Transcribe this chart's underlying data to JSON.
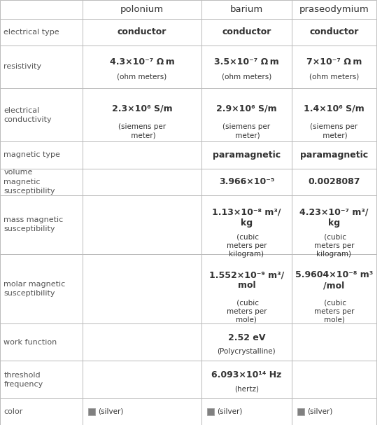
{
  "columns": [
    "",
    "polonium",
    "barium",
    "praseodymium"
  ],
  "rows": [
    {
      "label": "electrical type",
      "polonium": [
        [
          "conductor",
          "bold",
          9
        ]
      ],
      "barium": [
        [
          "conductor",
          "bold",
          9
        ]
      ],
      "praseodymium": [
        [
          "conductor",
          "bold",
          9
        ]
      ]
    },
    {
      "label": "resistivity",
      "polonium": [
        [
          "4.3×10⁻⁷ Ω m",
          "bold",
          9
        ],
        [
          "\n(ohm meters)",
          "normal",
          7.5
        ]
      ],
      "barium": [
        [
          "3.5×10⁻⁷ Ω m",
          "bold",
          9
        ],
        [
          "\n(ohm meters)",
          "normal",
          7.5
        ]
      ],
      "praseodymium": [
        [
          "7×10⁻⁷ Ω m",
          "bold",
          9
        ],
        [
          "\n(ohm meters)",
          "normal",
          7.5
        ]
      ]
    },
    {
      "label": "electrical\nconductivity",
      "polonium": [
        [
          "2.3×10⁶ S/m",
          "bold",
          9
        ],
        [
          "\n(siemens per\n meter)",
          "normal",
          7.5
        ]
      ],
      "barium": [
        [
          "2.9×10⁶ S/m",
          "bold",
          9
        ],
        [
          "\n(siemens per\n meter)",
          "normal",
          7.5
        ]
      ],
      "praseodymium": [
        [
          "1.4×10⁶ S/m",
          "bold",
          9
        ],
        [
          "\n(siemens per\n meter)",
          "normal",
          7.5
        ]
      ]
    },
    {
      "label": "magnetic type",
      "polonium": [],
      "barium": [
        [
          "paramagnetic",
          "bold",
          9
        ]
      ],
      "praseodymium": [
        [
          "paramagnetic",
          "bold",
          9
        ]
      ]
    },
    {
      "label": "volume\nmagnetic\nsusceptibility",
      "polonium": [],
      "barium": [
        [
          "3.966×10⁻⁵",
          "bold",
          9
        ]
      ],
      "praseodymium": [
        [
          "0.0028087",
          "bold",
          9
        ]
      ]
    },
    {
      "label": "mass magnetic\nsusceptibility",
      "polonium": [],
      "barium": [
        [
          "1.13×10⁻⁸ m³/",
          "bold",
          9
        ],
        [
          "\nkg",
          "bold",
          9
        ],
        [
          " (cubic\nmeters per\nkilogram)",
          "normal",
          7.5
        ]
      ],
      "praseodymium": [
        [
          "4.23×10⁻⁷ m³/",
          "bold",
          9
        ],
        [
          "\nkg",
          "bold",
          9
        ],
        [
          " (cubic\nmeters per\nkilogram)",
          "normal",
          7.5
        ]
      ]
    },
    {
      "label": "molar magnetic\nsusceptibility",
      "polonium": [],
      "barium": [
        [
          "1.552×10⁻⁹ m³/",
          "bold",
          9
        ],
        [
          "\nmol",
          "bold",
          9
        ],
        [
          " (cubic\nmeters per\nmole)",
          "normal",
          7.5
        ]
      ],
      "praseodymium": [
        [
          "5.9604×10⁻⁸ m³",
          "bold",
          9
        ],
        [
          "\n/mol",
          "bold",
          9
        ],
        [
          " (cubic\nmeters per\nmole)",
          "normal",
          7.5
        ]
      ]
    },
    {
      "label": "work function",
      "polonium": [],
      "barium": [
        [
          "2.52 eV",
          "bold",
          9
        ],
        [
          "\n(Polycrystalline)",
          "normal",
          7.5
        ]
      ],
      "praseodymium": []
    },
    {
      "label": "threshold\nfrequency",
      "polonium": [],
      "barium": [
        [
          "6.093×10¹⁴ Hz",
          "bold",
          9
        ],
        [
          "\n(hertz)",
          "normal",
          7.5
        ]
      ],
      "praseodymium": []
    },
    {
      "label": "color",
      "polonium": [
        [
          "color_swatch",
          "#808080",
          "(silver)"
        ]
      ],
      "barium": [
        [
          "color_swatch",
          "#808080",
          "(silver)"
        ]
      ],
      "praseodymium": [
        [
          "color_swatch",
          "#808080",
          "(silver)"
        ]
      ]
    }
  ],
  "background_color": "#ffffff",
  "header_bg": "#ffffff",
  "grid_color": "#bbbbbb",
  "text_color": "#333333",
  "label_color": "#555555"
}
